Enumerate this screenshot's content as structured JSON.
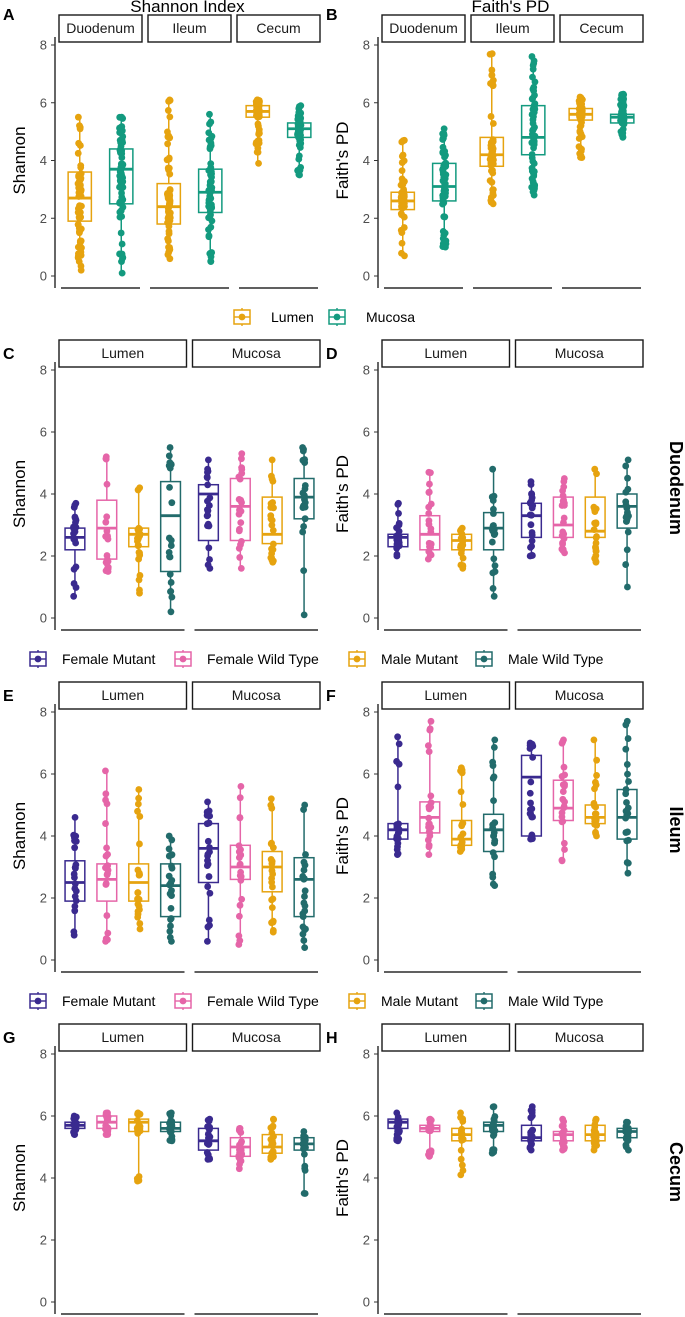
{
  "colors": {
    "Lumen": "#E6A30F",
    "Mucosa": "#139A7F",
    "Female Mutant": "#3A2A8F",
    "Female Wild Type": "#E565A8",
    "Male Mutant": "#E6A30F",
    "Male Wild Type": "#226B6B"
  },
  "legend_top": {
    "items": [
      "Lumen",
      "Mucosa"
    ]
  },
  "legend_group": {
    "items": [
      "Female Mutant",
      "Female Wild Type",
      "Male Mutant",
      "Male Wild Type"
    ]
  },
  "row_labels": [
    "Duodenum",
    "Ileum",
    "Cecum"
  ],
  "chart_data": [
    {
      "id": "A",
      "letter": "A",
      "type": "box",
      "title": "Shannon Index",
      "ylabel": "Shannon",
      "ylim": [
        0,
        8
      ],
      "yticks": [
        0,
        2,
        4,
        6,
        8
      ],
      "grid": false,
      "facets": [
        {
          "name": "Duodenum",
          "boxes": [
            {
              "group": "Lumen",
              "q1": 1.9,
              "median": 2.7,
              "q3": 3.6,
              "lo": 0.2,
              "hi": 5.5
            },
            {
              "group": "Mucosa",
              "q1": 2.5,
              "median": 3.7,
              "q3": 4.4,
              "lo": 0.1,
              "hi": 5.5
            }
          ]
        },
        {
          "name": "Ileum",
          "boxes": [
            {
              "group": "Lumen",
              "q1": 1.8,
              "median": 2.4,
              "q3": 3.2,
              "lo": 0.6,
              "hi": 6.1
            },
            {
              "group": "Mucosa",
              "q1": 2.2,
              "median": 2.9,
              "q3": 3.7,
              "lo": 0.5,
              "hi": 5.6
            }
          ]
        },
        {
          "name": "Cecum",
          "boxes": [
            {
              "group": "Lumen",
              "q1": 5.5,
              "median": 5.7,
              "q3": 5.9,
              "lo": 3.9,
              "hi": 6.1
            },
            {
              "group": "Mucosa",
              "q1": 4.8,
              "median": 5.1,
              "q3": 5.3,
              "lo": 3.5,
              "hi": 5.9
            }
          ]
        }
      ]
    },
    {
      "id": "B",
      "letter": "B",
      "type": "box",
      "title": "Faith's PD",
      "ylabel": "Faith's PD",
      "ylim": [
        0,
        8
      ],
      "yticks": [
        0,
        2,
        4,
        6,
        8
      ],
      "grid": false,
      "facets": [
        {
          "name": "Duodenum",
          "boxes": [
            {
              "group": "Lumen",
              "q1": 2.3,
              "median": 2.6,
              "q3": 2.9,
              "lo": 0.7,
              "hi": 4.7
            },
            {
              "group": "Mucosa",
              "q1": 2.6,
              "median": 3.1,
              "q3": 3.9,
              "lo": 1.0,
              "hi": 5.1
            }
          ]
        },
        {
          "name": "Ileum",
          "boxes": [
            {
              "group": "Lumen",
              "q1": 3.8,
              "median": 4.2,
              "q3": 4.8,
              "lo": 2.5,
              "hi": 7.7
            },
            {
              "group": "Mucosa",
              "q1": 4.2,
              "median": 4.8,
              "q3": 5.9,
              "lo": 2.8,
              "hi": 7.6
            }
          ]
        },
        {
          "name": "Cecum",
          "boxes": [
            {
              "group": "Lumen",
              "q1": 5.4,
              "median": 5.6,
              "q3": 5.8,
              "lo": 4.1,
              "hi": 6.2
            },
            {
              "group": "Mucosa",
              "q1": 5.3,
              "median": 5.5,
              "q3": 5.6,
              "lo": 4.8,
              "hi": 6.3
            }
          ]
        }
      ]
    },
    {
      "id": "C",
      "letter": "C",
      "type": "box",
      "ylabel": "Shannon",
      "ylim": [
        0,
        8
      ],
      "yticks": [
        0,
        2,
        4,
        6,
        8
      ],
      "grid": false,
      "facets": [
        {
          "name": "Lumen",
          "boxes": [
            {
              "group": "Female Mutant",
              "q1": 2.2,
              "median": 2.6,
              "q3": 2.9,
              "lo": 0.7,
              "hi": 3.7
            },
            {
              "group": "Female Wild Type",
              "q1": 1.9,
              "median": 2.9,
              "q3": 3.8,
              "lo": 1.5,
              "hi": 5.2
            },
            {
              "group": "Male Mutant",
              "q1": 2.3,
              "median": 2.7,
              "q3": 2.9,
              "lo": 0.8,
              "hi": 4.2
            },
            {
              "group": "Male Wild Type",
              "q1": 1.5,
              "median": 3.3,
              "q3": 4.4,
              "lo": 0.2,
              "hi": 5.5
            }
          ]
        },
        {
          "name": "Mucosa",
          "boxes": [
            {
              "group": "Female Mutant",
              "q1": 2.5,
              "median": 4.0,
              "q3": 4.3,
              "lo": 1.6,
              "hi": 5.1
            },
            {
              "group": "Female Wild Type",
              "q1": 2.5,
              "median": 3.6,
              "q3": 4.5,
              "lo": 1.6,
              "hi": 5.3
            },
            {
              "group": "Male Mutant",
              "q1": 2.4,
              "median": 2.7,
              "q3": 3.9,
              "lo": 1.8,
              "hi": 5.1
            },
            {
              "group": "Male Wild Type",
              "q1": 3.2,
              "median": 3.9,
              "q3": 4.5,
              "lo": 0.1,
              "hi": 5.5
            }
          ]
        }
      ]
    },
    {
      "id": "D",
      "letter": "D",
      "type": "box",
      "ylabel": "Faith's PD",
      "ylim": [
        0,
        8
      ],
      "yticks": [
        0,
        2,
        4,
        6,
        8
      ],
      "grid": false,
      "facets": [
        {
          "name": "Lumen",
          "boxes": [
            {
              "group": "Female Mutant",
              "q1": 2.3,
              "median": 2.6,
              "q3": 2.7,
              "lo": 2.0,
              "hi": 3.7
            },
            {
              "group": "Female Wild Type",
              "q1": 2.2,
              "median": 2.7,
              "q3": 3.3,
              "lo": 1.9,
              "hi": 4.7
            },
            {
              "group": "Male Mutant",
              "q1": 2.2,
              "median": 2.5,
              "q3": 2.7,
              "lo": 1.6,
              "hi": 2.9
            },
            {
              "group": "Male Wild Type",
              "q1": 2.2,
              "median": 2.9,
              "q3": 3.4,
              "lo": 0.7,
              "hi": 4.8
            }
          ]
        },
        {
          "name": "Mucosa",
          "boxes": [
            {
              "group": "Female Mutant",
              "q1": 2.6,
              "median": 3.3,
              "q3": 3.7,
              "lo": 2.0,
              "hi": 4.4
            },
            {
              "group": "Female Wild Type",
              "q1": 2.6,
              "median": 3.0,
              "q3": 3.9,
              "lo": 2.1,
              "hi": 4.5
            },
            {
              "group": "Male Mutant",
              "q1": 2.6,
              "median": 2.8,
              "q3": 3.9,
              "lo": 1.8,
              "hi": 4.8
            },
            {
              "group": "Male Wild Type",
              "q1": 2.9,
              "median": 3.6,
              "q3": 4.0,
              "lo": 1.0,
              "hi": 5.1
            }
          ]
        }
      ]
    },
    {
      "id": "E",
      "letter": "E",
      "type": "box",
      "ylabel": "Shannon",
      "ylim": [
        0,
        8
      ],
      "yticks": [
        0,
        2,
        4,
        6,
        8
      ],
      "grid": false,
      "facets": [
        {
          "name": "Lumen",
          "boxes": [
            {
              "group": "Female Mutant",
              "q1": 1.9,
              "median": 2.5,
              "q3": 3.2,
              "lo": 0.8,
              "hi": 4.6
            },
            {
              "group": "Female Wild Type",
              "q1": 1.9,
              "median": 2.6,
              "q3": 3.1,
              "lo": 0.6,
              "hi": 6.1
            },
            {
              "group": "Male Mutant",
              "q1": 1.9,
              "median": 2.5,
              "q3": 3.1,
              "lo": 1.0,
              "hi": 5.5
            },
            {
              "group": "Male Wild Type",
              "q1": 1.4,
              "median": 2.4,
              "q3": 3.1,
              "lo": 0.6,
              "hi": 4.0
            }
          ]
        },
        {
          "name": "Mucosa",
          "boxes": [
            {
              "group": "Female Mutant",
              "q1": 2.5,
              "median": 3.6,
              "q3": 4.4,
              "lo": 0.6,
              "hi": 5.1
            },
            {
              "group": "Female Wild Type",
              "q1": 2.6,
              "median": 3.0,
              "q3": 3.7,
              "lo": 0.5,
              "hi": 5.6
            },
            {
              "group": "Male Mutant",
              "q1": 2.2,
              "median": 3.0,
              "q3": 3.5,
              "lo": 0.9,
              "hi": 5.2
            },
            {
              "group": "Male Wild Type",
              "q1": 1.4,
              "median": 2.6,
              "q3": 3.3,
              "lo": 0.4,
              "hi": 5.0
            }
          ]
        }
      ]
    },
    {
      "id": "F",
      "letter": "F",
      "type": "box",
      "ylabel": "Faith's PD",
      "ylim": [
        0,
        8
      ],
      "yticks": [
        0,
        2,
        4,
        6,
        8
      ],
      "grid": false,
      "facets": [
        {
          "name": "Lumen",
          "boxes": [
            {
              "group": "Female Mutant",
              "q1": 3.9,
              "median": 4.2,
              "q3": 4.4,
              "lo": 3.4,
              "hi": 7.2
            },
            {
              "group": "Female Wild Type",
              "q1": 4.1,
              "median": 4.6,
              "q3": 5.1,
              "lo": 3.4,
              "hi": 7.7
            },
            {
              "group": "Male Mutant",
              "q1": 3.7,
              "median": 3.9,
              "q3": 4.5,
              "lo": 3.5,
              "hi": 6.2
            },
            {
              "group": "Male Wild Type",
              "q1": 3.5,
              "median": 4.2,
              "q3": 4.7,
              "lo": 2.4,
              "hi": 7.1
            }
          ]
        },
        {
          "name": "Mucosa",
          "boxes": [
            {
              "group": "Female Mutant",
              "q1": 4.0,
              "median": 5.9,
              "q3": 6.6,
              "lo": 3.9,
              "hi": 7.0
            },
            {
              "group": "Female Wild Type",
              "q1": 4.5,
              "median": 4.9,
              "q3": 5.8,
              "lo": 3.2,
              "hi": 7.1
            },
            {
              "group": "Male Mutant",
              "q1": 4.4,
              "median": 4.6,
              "q3": 5.0,
              "lo": 4.0,
              "hi": 7.1
            },
            {
              "group": "Male Wild Type",
              "q1": 3.9,
              "median": 4.6,
              "q3": 5.5,
              "lo": 2.8,
              "hi": 7.7
            }
          ]
        }
      ]
    },
    {
      "id": "G",
      "letter": "G",
      "type": "box",
      "ylabel": "Shannon",
      "ylim": [
        0,
        8
      ],
      "yticks": [
        0,
        2,
        4,
        6,
        8
      ],
      "grid": false,
      "facets": [
        {
          "name": "Lumen",
          "boxes": [
            {
              "group": "Female Mutant",
              "q1": 5.6,
              "median": 5.7,
              "q3": 5.8,
              "lo": 5.4,
              "hi": 6.0
            },
            {
              "group": "Female Wild Type",
              "q1": 5.6,
              "median": 5.8,
              "q3": 6.0,
              "lo": 5.4,
              "hi": 6.1
            },
            {
              "group": "Male Mutant",
              "q1": 5.5,
              "median": 5.8,
              "q3": 5.9,
              "lo": 3.9,
              "hi": 6.1
            },
            {
              "group": "Male Wild Type",
              "q1": 5.5,
              "median": 5.6,
              "q3": 5.8,
              "lo": 5.2,
              "hi": 6.1
            }
          ]
        },
        {
          "name": "Mucosa",
          "boxes": [
            {
              "group": "Female Mutant",
              "q1": 4.9,
              "median": 5.2,
              "q3": 5.6,
              "lo": 4.6,
              "hi": 5.9
            },
            {
              "group": "Female Wild Type",
              "q1": 4.7,
              "median": 5.0,
              "q3": 5.3,
              "lo": 4.3,
              "hi": 5.6
            },
            {
              "group": "Male Mutant",
              "q1": 4.8,
              "median": 5.0,
              "q3": 5.4,
              "lo": 4.6,
              "hi": 5.9
            },
            {
              "group": "Male Wild Type",
              "q1": 4.9,
              "median": 5.1,
              "q3": 5.3,
              "lo": 3.5,
              "hi": 5.5
            }
          ]
        }
      ]
    },
    {
      "id": "H",
      "letter": "H",
      "type": "box",
      "ylabel": "Faith's PD",
      "ylim": [
        0,
        8
      ],
      "yticks": [
        0,
        2,
        4,
        6,
        8
      ],
      "grid": false,
      "facets": [
        {
          "name": "Lumen",
          "boxes": [
            {
              "group": "Female Mutant",
              "q1": 5.6,
              "median": 5.8,
              "q3": 5.9,
              "lo": 5.2,
              "hi": 6.1
            },
            {
              "group": "Female Wild Type",
              "q1": 5.5,
              "median": 5.6,
              "q3": 5.7,
              "lo": 4.7,
              "hi": 5.9
            },
            {
              "group": "Male Mutant",
              "q1": 5.2,
              "median": 5.4,
              "q3": 5.6,
              "lo": 4.1,
              "hi": 6.1
            },
            {
              "group": "Male Wild Type",
              "q1": 5.5,
              "median": 5.7,
              "q3": 5.8,
              "lo": 4.8,
              "hi": 6.3
            }
          ]
        },
        {
          "name": "Mucosa",
          "boxes": [
            {
              "group": "Female Mutant",
              "q1": 5.2,
              "median": 5.3,
              "q3": 5.7,
              "lo": 4.9,
              "hi": 6.3
            },
            {
              "group": "Female Wild Type",
              "q1": 5.2,
              "median": 5.4,
              "q3": 5.5,
              "lo": 4.9,
              "hi": 5.9
            },
            {
              "group": "Male Mutant",
              "q1": 5.2,
              "median": 5.4,
              "q3": 5.7,
              "lo": 4.9,
              "hi": 5.9
            },
            {
              "group": "Male Wild Type",
              "q1": 5.3,
              "median": 5.5,
              "q3": 5.6,
              "lo": 4.9,
              "hi": 5.8
            }
          ]
        }
      ]
    }
  ]
}
